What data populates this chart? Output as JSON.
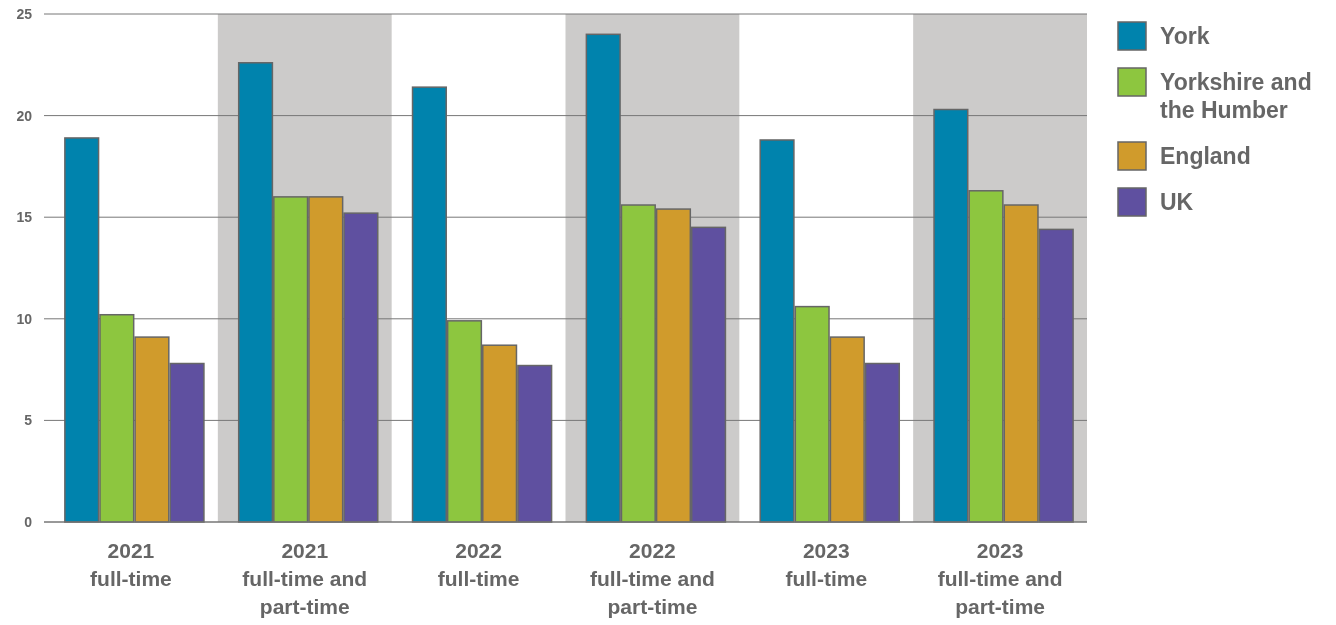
{
  "chart_data": {
    "type": "bar",
    "categories": [
      "2021\nfull-time",
      "2021\nfull-time and\npart-time",
      "2022\nfull-time",
      "2022\nfull-time and\npart-time",
      "2023\nfull-time",
      "2023\nfull-time and\npart-time"
    ],
    "series": [
      {
        "name": "York",
        "color": "#0083ad",
        "values": [
          18.9,
          22.6,
          21.4,
          24.0,
          18.8,
          20.3
        ]
      },
      {
        "name": "Yorkshire and the Humber",
        "color": "#8dc63f",
        "values": [
          10.2,
          16.0,
          9.9,
          15.6,
          10.6,
          16.3
        ]
      },
      {
        "name": "England",
        "color": "#d09b2c",
        "values": [
          9.1,
          16.0,
          8.7,
          15.4,
          9.1,
          15.6
        ]
      },
      {
        "name": "UK",
        "color": "#5f50a0",
        "values": [
          7.8,
          15.2,
          7.7,
          14.5,
          7.8,
          14.4
        ]
      }
    ],
    "ylim": [
      0,
      25
    ],
    "yticks": [
      0,
      5,
      10,
      15,
      20,
      25
    ],
    "grid": "y",
    "legend": "top right",
    "bands": [
      {
        "axis": "x",
        "from": "2021\nfull-time and\npart-time",
        "to": "2021\nfull-time and\npart-time",
        "color": "#cccbca"
      },
      {
        "axis": "x",
        "from": "2022\nfull-time and\npart-time",
        "to": "2022\nfull-time and\npart-time",
        "color": "#cccbca"
      },
      {
        "axis": "x",
        "from": "2023\nfull-time and\npart-time",
        "to": "2023\nfull-time and\npart-time",
        "color": "#cccbca"
      }
    ]
  }
}
